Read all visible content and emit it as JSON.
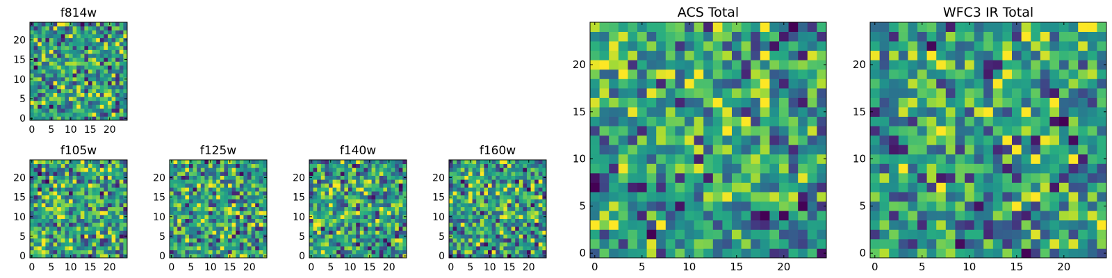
{
  "chart_data": [
    {
      "type": "heatmap",
      "id": "f814w",
      "title": "f814w",
      "colormap": "viridis",
      "grid_size": 25,
      "xlim": [
        -0.5,
        24.5
      ],
      "ylim": [
        -0.5,
        24.5
      ],
      "xticks": [
        0,
        5,
        10,
        15,
        20
      ],
      "yticks": [
        0,
        5,
        10,
        15,
        20
      ],
      "values_note": "per-pixel intensities are not legible; normalized 0-1, mostly high (green/yellow) with scattered dark pixels"
    },
    {
      "type": "heatmap",
      "id": "f105w",
      "title": "f105w",
      "colormap": "viridis",
      "grid_size": 25,
      "xlim": [
        -0.5,
        24.5
      ],
      "ylim": [
        -0.5,
        24.5
      ],
      "xticks": [
        0,
        5,
        10,
        15,
        20
      ],
      "yticks": [
        0,
        5,
        10,
        15,
        20
      ],
      "values_note": "smoother texture with a brighter central region"
    },
    {
      "type": "heatmap",
      "id": "f125w",
      "title": "f125w",
      "colormap": "viridis",
      "grid_size": 25,
      "xlim": [
        -0.5,
        24.5
      ],
      "ylim": [
        -0.5,
        24.5
      ],
      "xticks": [
        0,
        5,
        10,
        15,
        20
      ],
      "yticks": [
        0,
        5,
        10,
        15,
        20
      ],
      "values_note": "mottled texture, bright patches lower-left"
    },
    {
      "type": "heatmap",
      "id": "f140w",
      "title": "f140w",
      "colormap": "viridis",
      "grid_size": 25,
      "xlim": [
        -0.5,
        24.5
      ],
      "ylim": [
        -0.5,
        24.5
      ],
      "xticks": [
        0,
        5,
        10,
        15,
        20
      ],
      "yticks": [
        0,
        5,
        10,
        15,
        20
      ],
      "values_note": "mottled texture, bright band at bottom, dark spots"
    },
    {
      "type": "heatmap",
      "id": "f160w",
      "title": "f160w",
      "colormap": "viridis",
      "grid_size": 25,
      "xlim": [
        -0.5,
        24.5
      ],
      "ylim": [
        -0.5,
        24.5
      ],
      "xticks": [
        0,
        5,
        10,
        15,
        20
      ],
      "yticks": [
        0,
        5,
        10,
        15,
        20
      ],
      "values_note": "mottled texture, bright band at bottom-left"
    },
    {
      "type": "heatmap",
      "id": "acs-total",
      "title": "ACS Total",
      "colormap": "viridis",
      "grid_size": 25,
      "xlim": [
        -0.5,
        24.5
      ],
      "ylim": [
        -0.5,
        24.5
      ],
      "xticks": [
        0,
        5,
        10,
        15,
        20
      ],
      "yticks": [
        0,
        5,
        10,
        15,
        20
      ],
      "values_note": "blocky pixels, mostly green-yellow with few dark purple pixels"
    },
    {
      "type": "heatmap",
      "id": "wfc3-ir-total",
      "title": "WFC3 IR Total",
      "colormap": "viridis",
      "grid_size": 25,
      "xlim": [
        -0.5,
        24.5
      ],
      "ylim": [
        -0.5,
        24.5
      ],
      "xticks": [
        0,
        5,
        10,
        15,
        20
      ],
      "yticks": [
        0,
        5,
        10,
        15,
        20
      ],
      "values_note": "blocky pixels, mostly green-yellow with few dark purple pixels"
    }
  ]
}
